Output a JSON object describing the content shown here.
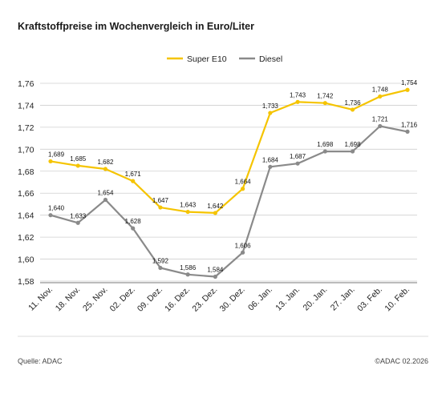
{
  "title": "Kraftstoffpreise im Wochenvergleich in Euro/Liter",
  "source": "Quelle: ADAC",
  "copyright": "©ADAC 02.2026",
  "colors": {
    "super_e10": "#f5c400",
    "diesel": "#8a8a8a",
    "grid": "#cfcfcf",
    "axis": "#7a7a7a"
  },
  "chart_data": {
    "type": "line",
    "title": "Kraftstoffpreise im Wochenvergleich in Euro/Liter",
    "x": [
      "11. Nov.",
      "18. Nov.",
      "25. Nov.",
      "02. Dez.",
      "09. Dez.",
      "16. Dez.",
      "23. Dez.",
      "30. Dez.",
      "06. Jan.",
      "13. Jan.",
      "20. Jan.",
      "27. Jan.",
      "03. Feb.",
      "10. Feb."
    ],
    "series": [
      {
        "name": "Super E10",
        "values": [
          1.689,
          1.685,
          1.682,
          1.671,
          1.647,
          1.643,
          1.642,
          1.664,
          1.733,
          1.743,
          1.742,
          1.736,
          1.748,
          1.754
        ],
        "labels": [
          "1,689",
          "1,685",
          "1,682",
          "1,671",
          "1,647",
          "1,643",
          "1,642",
          "1,664",
          "1,733",
          "1,743",
          "1,742",
          "1,736",
          "1,748",
          "1,754"
        ]
      },
      {
        "name": "Diesel",
        "values": [
          1.64,
          1.633,
          1.654,
          1.628,
          1.592,
          1.586,
          1.584,
          1.606,
          1.684,
          1.687,
          1.698,
          1.698,
          1.721,
          1.716
        ],
        "labels": [
          "1,640",
          "1,633",
          "1,654",
          "1,628",
          "1,592",
          "1,586",
          "1,584",
          "1,606",
          "1,684",
          "1,687",
          "1,698",
          "1,698",
          "1,721",
          "1,716"
        ]
      }
    ],
    "ylim": [
      1.58,
      1.76
    ],
    "yticks": [
      1.58,
      1.6,
      1.62,
      1.64,
      1.66,
      1.68,
      1.7,
      1.72,
      1.74,
      1.76
    ],
    "ytick_labels": [
      "1,58",
      "1,60",
      "1,62",
      "1,64",
      "1,66",
      "1,68",
      "1,70",
      "1,72",
      "1,74",
      "1,76"
    ],
    "grid": true,
    "legend": "top-center"
  }
}
